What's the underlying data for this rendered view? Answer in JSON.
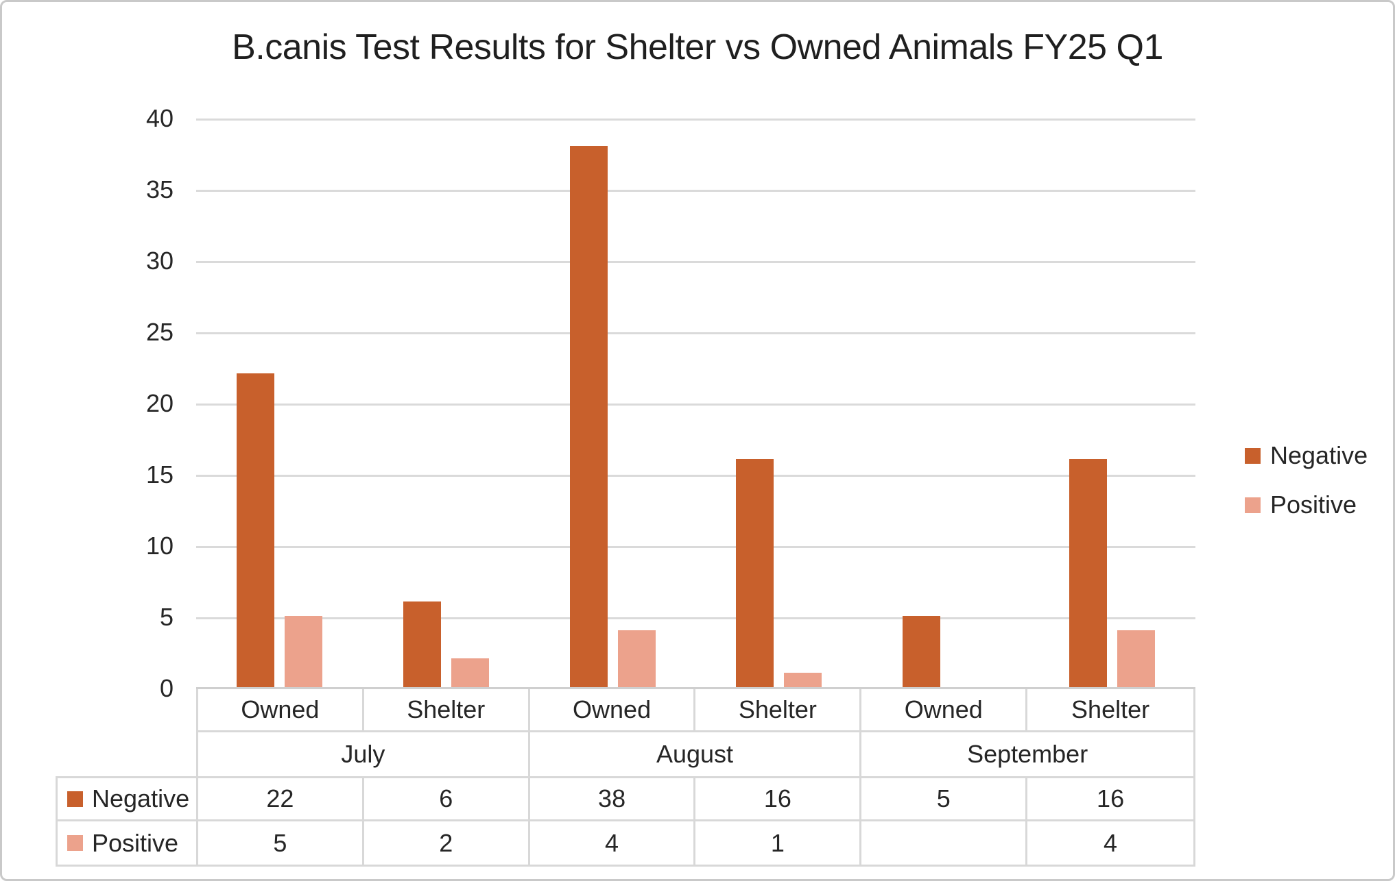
{
  "chart_data": {
    "type": "bar",
    "title": "B.canis Test Results for Shelter vs Owned Animals FY25 Q1",
    "categories": [
      {
        "month": "July",
        "type": "Owned"
      },
      {
        "month": "July",
        "type": "Shelter"
      },
      {
        "month": "August",
        "type": "Owned"
      },
      {
        "month": "August",
        "type": "Shelter"
      },
      {
        "month": "September",
        "type": "Owned"
      },
      {
        "month": "September",
        "type": "Shelter"
      }
    ],
    "month_groups": [
      "July",
      "August",
      "September"
    ],
    "series": [
      {
        "name": "Negative",
        "color": "#c8602c",
        "values": [
          22,
          6,
          38,
          16,
          5,
          16
        ]
      },
      {
        "name": "Positive",
        "color": "#eca28c",
        "values": [
          5,
          2,
          4,
          1,
          null,
          4
        ]
      }
    ],
    "y_ticks": [
      0,
      5,
      10,
      15,
      20,
      25,
      30,
      35,
      40
    ],
    "ylim": [
      0,
      40
    ],
    "grid": true,
    "legend_position": "right",
    "data_table_shown": true,
    "colors": {
      "gridline": "#dadada",
      "axis_line": "#cfcfcf",
      "table_border": "#d8d8d8",
      "text": "#262626"
    }
  }
}
